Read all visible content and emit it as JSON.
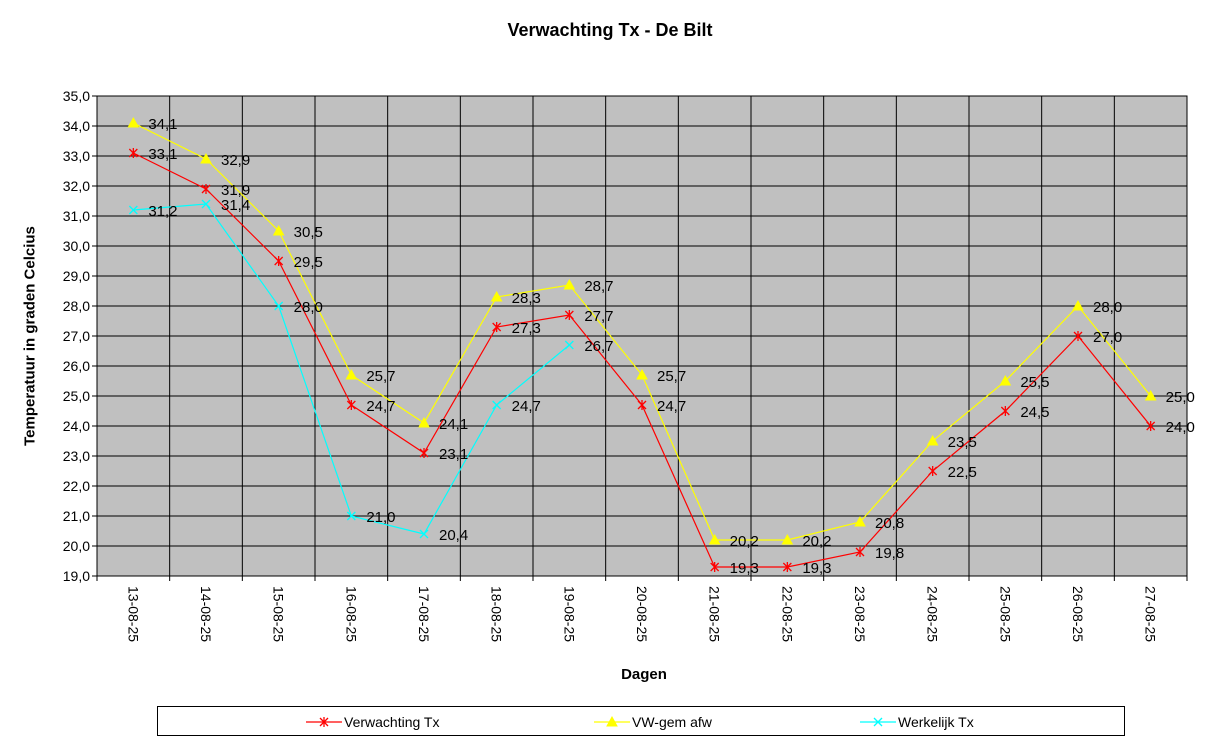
{
  "chart_data": {
    "type": "line",
    "title": "Verwachting Tx - De Bilt",
    "xlabel": "Dagen",
    "ylabel": "Temperatuur in graden Celcius",
    "categories": [
      "13-08-25",
      "14-08-25",
      "15-08-25",
      "16-08-25",
      "17-08-25",
      "18-08-25",
      "19-08-25",
      "20-08-25",
      "21-08-25",
      "22-08-25",
      "23-08-25",
      "24-08-25",
      "25-08-25",
      "26-08-25",
      "27-08-25"
    ],
    "ylim": [
      19.0,
      35.0
    ],
    "ytick_step": 1.0,
    "yticks": [
      "19,0",
      "20,0",
      "21,0",
      "22,0",
      "23,0",
      "24,0",
      "25,0",
      "26,0",
      "27,0",
      "28,0",
      "29,0",
      "30,0",
      "31,0",
      "32,0",
      "33,0",
      "34,0",
      "35,0"
    ],
    "grid": true,
    "legend_position": "bottom",
    "series": [
      {
        "name": "Verwachting Tx",
        "color": "#ff0000",
        "marker": "star",
        "values": [
          33.1,
          31.9,
          29.5,
          24.7,
          23.1,
          27.3,
          27.7,
          24.7,
          19.3,
          19.3,
          19.8,
          22.5,
          24.5,
          27.0,
          24.0
        ],
        "labels": [
          "33,1",
          "31,9",
          "29,5",
          "24,7",
          "23,1",
          "27,3",
          "27,7",
          "24,7",
          "19,3",
          "19,3",
          "19,8",
          "22,5",
          "24,5",
          "27,0",
          "24,0"
        ]
      },
      {
        "name": "VW-gem afw",
        "color": "#ffff00",
        "marker": "triangle",
        "values": [
          34.1,
          32.9,
          30.5,
          25.7,
          24.1,
          28.3,
          28.7,
          25.7,
          20.2,
          20.2,
          20.8,
          23.5,
          25.5,
          28.0,
          25.0
        ],
        "labels": [
          "34,1",
          "32,9",
          "30,5",
          "25,7",
          "24,1",
          "28,3",
          "28,7",
          "25,7",
          "20,2",
          "20,2",
          "20,8",
          "23,5",
          "25,5",
          "28,0",
          "25,0"
        ]
      },
      {
        "name": "Werkelijk Tx",
        "color": "#00ffff",
        "marker": "x",
        "values": [
          31.2,
          31.4,
          28.0,
          21.0,
          20.4,
          24.7,
          26.7,
          null,
          null,
          null,
          null,
          null,
          null,
          null,
          null
        ],
        "labels": [
          "31,2",
          "31,4",
          "28,0",
          "21,0",
          "20,4",
          "24,7",
          "26,7",
          "",
          "",
          "",
          "",
          "",
          "",
          "",
          ""
        ]
      }
    ],
    "colors": {
      "plot_background": "#c0c0c0",
      "grid": "#000000"
    }
  }
}
